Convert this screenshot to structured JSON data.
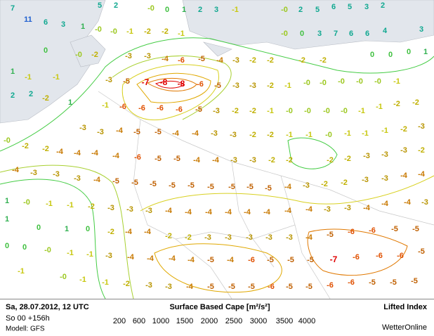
{
  "map": {
    "labels": [
      "7",
      "11",
      "6",
      "3",
      "1",
      "5",
      "2",
      "-0",
      "0",
      "1",
      "2",
      "3",
      "-1",
      "-0",
      "2",
      "5",
      "6",
      "5",
      "3",
      "2",
      "-0",
      "-0",
      "-1",
      "-2",
      "-2",
      "-1",
      "-0",
      "0",
      "3",
      "7",
      "6",
      "6",
      "4",
      "3",
      "0",
      "-0",
      "-2",
      "-3",
      "-3",
      "-4",
      "-6",
      "-5",
      "-4",
      "-3",
      "-2",
      "-2",
      "-2",
      "-2",
      "0",
      "0",
      "0",
      "1",
      "1",
      "-1",
      "-1",
      "-3",
      "-5",
      "-7",
      "-8",
      "-8",
      "-6",
      "-5",
      "-3",
      "-3",
      "-2",
      "-1",
      "-0",
      "-0",
      "-0",
      "-0",
      "-0",
      "-1",
      "2",
      "2",
      "-2",
      "1",
      "-1",
      "-6",
      "-6",
      "-6",
      "-6",
      "-5",
      "-3",
      "-2",
      "-2",
      "-1",
      "-0",
      "-0",
      "-0",
      "-0",
      "-1",
      "-1",
      "-2",
      "-2",
      "-3",
      "-3",
      "-4",
      "-5",
      "-5",
      "-4",
      "-4",
      "-3",
      "-3",
      "-2",
      "-2",
      "-1",
      "-1",
      "-0",
      "-1",
      "-1",
      "-1",
      "-2",
      "-3",
      "-0",
      "-2",
      "-2",
      "-4",
      "-4",
      "-4",
      "-4",
      "-6",
      "-5",
      "-5",
      "-4",
      "-4",
      "-3",
      "-3",
      "-2",
      "-2",
      "-2",
      "-2",
      "-3",
      "-3",
      "-3",
      "-2",
      "-4",
      "-3",
      "-3",
      "-3",
      "-4",
      "-5",
      "-5",
      "-5",
      "-5",
      "-5",
      "-5",
      "-5",
      "-5",
      "-5",
      "-4",
      "-3",
      "-2",
      "-2",
      "-3",
      "-3",
      "-4",
      "-4",
      "1",
      "-0",
      "-1",
      "-1",
      "-2",
      "-3",
      "-3",
      "-3",
      "-4",
      "-4",
      "-4",
      "-4",
      "-4",
      "-4",
      "-4",
      "-4",
      "-3",
      "-3",
      "-4",
      "-4",
      "-4",
      "-3",
      "1",
      "0",
      "1",
      "0",
      "-2",
      "-4",
      "-4",
      "-2",
      "-2",
      "-3",
      "-3",
      "-3",
      "-3",
      "-3",
      "-4",
      "-5",
      "-6",
      "-6",
      "-5",
      "-5",
      "0",
      "0",
      "-0",
      "-1",
      "-1",
      "-3",
      "-4",
      "-4",
      "-4",
      "-4",
      "-5",
      "-4",
      "-6",
      "-5",
      "-5",
      "-5",
      "-7",
      "-6",
      "-6",
      "-6",
      "-5",
      "-1",
      "-0",
      "-1",
      "-1",
      "-2",
      "-3",
      "-3",
      "-4",
      "-5",
      "-5",
      "-5",
      "-6",
      "-5",
      "-5",
      "-6",
      "-6",
      "-5",
      "-5",
      "-5"
    ]
  },
  "footer": {
    "date": "Sa, 28.07.2012, 12 UTC",
    "run": "So 00 +156h",
    "model": "Modell: GFS",
    "title": "Surface Based Cape [m²/s²]",
    "levels": [
      200,
      600,
      1000,
      1500,
      2000,
      2500,
      3000,
      3500,
      4000
    ],
    "level_colors": [
      "#44cc44",
      "#a8d030",
      "#d8d020",
      "#e0a800",
      "#e07800",
      "#e00000",
      "#c000c0",
      "#a040d0",
      "#8020b0"
    ],
    "index_title": "Lifted Index",
    "brand": "WetterOnline"
  }
}
